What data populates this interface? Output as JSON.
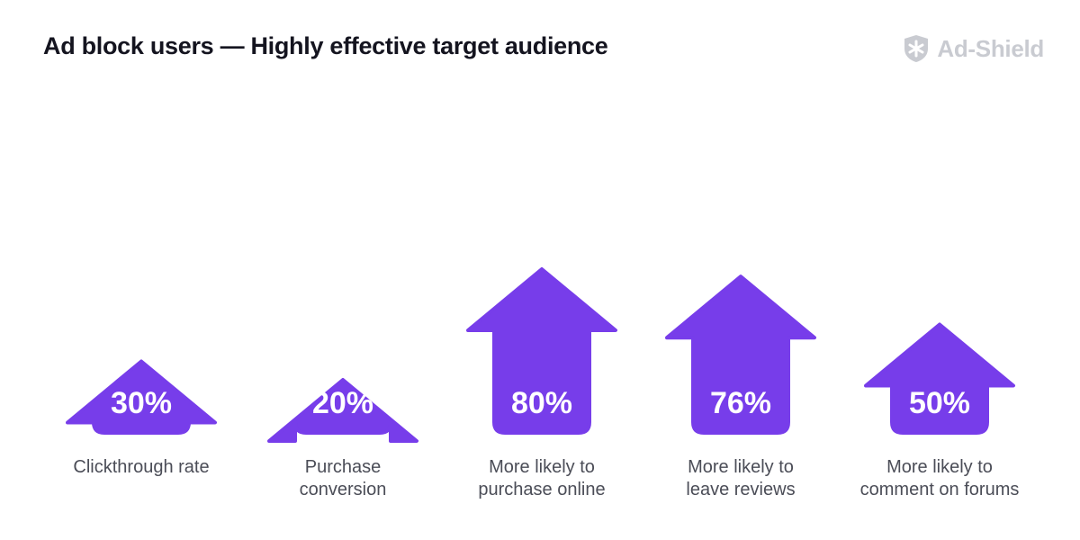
{
  "header": {
    "title": "Ad block users — Highly effective target audience",
    "brand": "Ad-Shield",
    "logo_icon": "shield-asterisk-icon"
  },
  "colors": {
    "arrow": "#773dea",
    "title": "#14141f",
    "label": "#4b4d57",
    "brand": "#c9cbd1"
  },
  "chart_data": {
    "type": "bar",
    "categories": [
      [
        "Clickthrough rate"
      ],
      [
        "Purchase",
        "conversion"
      ],
      [
        "More likely to",
        "purchase online"
      ],
      [
        "More likely to",
        "leave reviews"
      ],
      [
        "More likely to",
        "comment on forums"
      ]
    ],
    "values": [
      30,
      20,
      80,
      76,
      50
    ],
    "value_labels": [
      "30%",
      "20%",
      "80%",
      "76%",
      "50%"
    ],
    "unit": "%",
    "ylim": [
      0,
      100
    ],
    "grid": false,
    "legend": "none"
  }
}
